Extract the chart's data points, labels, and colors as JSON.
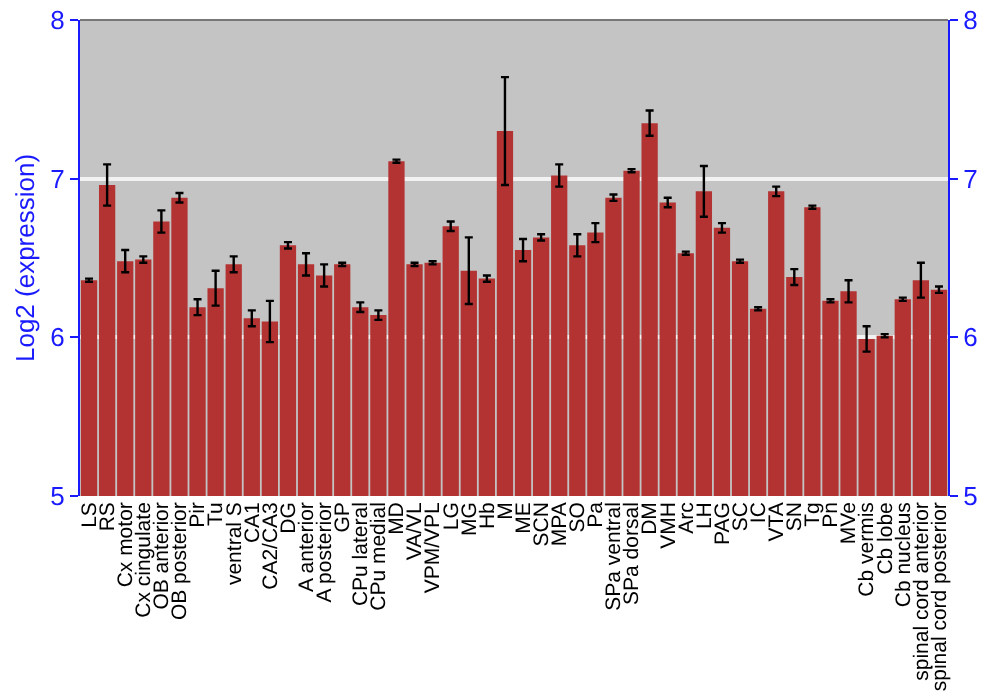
{
  "chart_data": {
    "type": "bar",
    "ylabel": "Log2 (expression)",
    "categories": [
      "LS",
      "RS",
      "Cx motor",
      "Cx cingulate",
      "OB anterior",
      "OB posterior",
      "Pir",
      "Tu",
      "ventral S",
      "CA1",
      "CA2/CA3",
      "DG",
      "A anterior",
      "A posterior",
      "GP",
      "CPu lateral",
      "CPu medial",
      "MD",
      "VA/VL",
      "VPM/VPL",
      "LG",
      "MG",
      "Hb",
      "M",
      "ME",
      "SCN",
      "MPA",
      "SO",
      "Pa",
      "SPa ventral",
      "SPa dorsal",
      "DM",
      "VMH",
      "Arc",
      "LH",
      "PAG",
      "SC",
      "IC",
      "VTA",
      "SN",
      "Tg",
      "Pn",
      "MVe",
      "Cb vermis",
      "Cb lobe",
      "Cb nucleus",
      "spinal cord anterior",
      "spinal cord posterior"
    ],
    "values": [
      6.36,
      6.96,
      6.48,
      6.49,
      6.73,
      6.88,
      6.19,
      6.31,
      6.46,
      6.12,
      6.1,
      6.58,
      6.46,
      6.39,
      6.46,
      6.19,
      6.14,
      7.11,
      6.46,
      6.47,
      6.7,
      6.42,
      6.37,
      7.3,
      6.55,
      6.63,
      7.02,
      6.58,
      6.66,
      6.88,
      7.05,
      7.35,
      6.85,
      6.53,
      6.92,
      6.69,
      6.48,
      6.18,
      6.92,
      6.38,
      6.82,
      6.23,
      6.29,
      5.99,
      6.01,
      6.24,
      6.36,
      6.3
    ],
    "errors": [
      0.01,
      0.13,
      0.07,
      0.02,
      0.07,
      0.03,
      0.05,
      0.11,
      0.05,
      0.05,
      0.13,
      0.02,
      0.07,
      0.07,
      0.01,
      0.03,
      0.03,
      0.01,
      0.01,
      0.01,
      0.03,
      0.21,
      0.02,
      0.34,
      0.07,
      0.02,
      0.07,
      0.07,
      0.06,
      0.02,
      0.01,
      0.08,
      0.03,
      0.01,
      0.16,
      0.03,
      0.01,
      0.01,
      0.03,
      0.05,
      0.01,
      0.01,
      0.07,
      0.08,
      0.01,
      0.01,
      0.11,
      0.02
    ],
    "color": "#b33333",
    "ylim": [
      5,
      8
    ],
    "yticks": [
      5,
      6,
      7,
      8
    ],
    "y2lim": [
      5,
      8
    ],
    "y2ticks": [
      5,
      6,
      7,
      8
    ],
    "grid": "y"
  }
}
